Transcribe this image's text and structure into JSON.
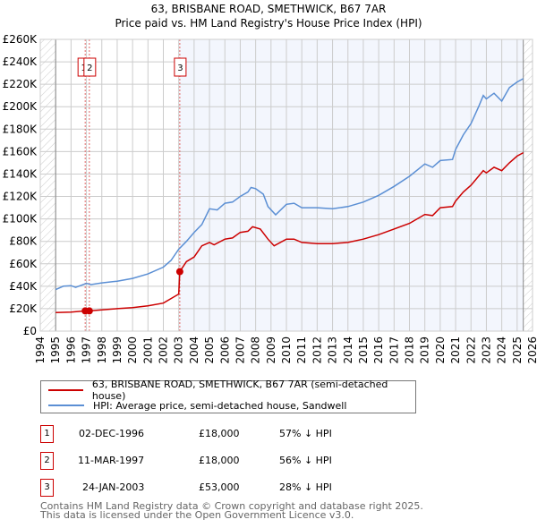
{
  "title": "63, BRISBANE ROAD, SMETHWICK, B67 7AR",
  "subtitle": "Price paid vs. HM Land Registry's House Price Index (HPI)",
  "chart_data": {
    "type": "line",
    "xlim": [
      1994,
      2026
    ],
    "ylim": [
      0,
      260000
    ],
    "x_ticks": [
      "1994",
      "1995",
      "1996",
      "1997",
      "1998",
      "1999",
      "2000",
      "2001",
      "2002",
      "2003",
      "2004",
      "2005",
      "2006",
      "2007",
      "2008",
      "2009",
      "2010",
      "2011",
      "2012",
      "2013",
      "2014",
      "2015",
      "2016",
      "2017",
      "2018",
      "2019",
      "2020",
      "2021",
      "2022",
      "2023",
      "2024",
      "2025",
      "2026"
    ],
    "y_ticks": [
      "£0",
      "£20K",
      "£40K",
      "£60K",
      "£80K",
      "£100K",
      "£120K",
      "£140K",
      "£160K",
      "£180K",
      "£200K",
      "£220K",
      "£240K",
      "£260K"
    ],
    "grid": true,
    "data_range": [
      1995.0,
      2025.4
    ],
    "shaded_from": 2003.07,
    "series": [
      {
        "name": "63, BRISBANE ROAD, SMETHWICK, B67 7AR (semi-detached house)",
        "color": "#cc0000",
        "x": [
          1995,
          1996,
          1996.92,
          1997.19,
          1998,
          1999,
          2000,
          2001,
          2002,
          2002.5,
          2003.0,
          2003.07,
          2003.5,
          2004,
          2004.5,
          2005,
          2005.3,
          2006,
          2006.5,
          2007,
          2007.5,
          2007.8,
          2008.3,
          2008.8,
          2009.2,
          2010,
          2010.5,
          2011,
          2012,
          2013,
          2014,
          2015,
          2016,
          2017,
          2018,
          2019,
          2019.5,
          2020,
          2020.8,
          2021,
          2021.5,
          2022,
          2022.8,
          2023,
          2023.5,
          2024,
          2024.5,
          2025,
          2025.4
        ],
        "y": [
          16500,
          17000,
          18000,
          18000,
          19000,
          20000,
          21000,
          22500,
          25000,
          29000,
          33000,
          53000,
          62000,
          66000,
          76000,
          79000,
          77000,
          82000,
          83000,
          88000,
          89000,
          93000,
          91000,
          82000,
          76000,
          82000,
          82000,
          79000,
          78000,
          78000,
          79000,
          82000,
          86000,
          91000,
          96000,
          104000,
          103000,
          110000,
          111000,
          116000,
          124000,
          130000,
          143000,
          141000,
          146000,
          143000,
          150000,
          156000,
          159000
        ]
      },
      {
        "name": "HPI: Average price, semi-detached house, Sandwell",
        "color": "#5b8fd4",
        "x": [
          1995,
          1995.5,
          1996,
          1996.3,
          1997,
          1997.3,
          1998,
          1999,
          2000,
          2001,
          2002,
          2002.5,
          2003,
          2003.5,
          2004,
          2004.5,
          2005,
          2005.5,
          2006,
          2006.5,
          2007,
          2007.5,
          2007.7,
          2008,
          2008.5,
          2008.8,
          2009.3,
          2010,
          2010.5,
          2011,
          2012,
          2013,
          2014,
          2015,
          2016,
          2017,
          2018,
          2019,
          2019.5,
          2020,
          2020.8,
          2021,
          2021.5,
          2022,
          2022.5,
          2022.8,
          2023,
          2023.5,
          2024,
          2024.5,
          2025,
          2025.4
        ],
        "y": [
          37000,
          40000,
          40500,
          39000,
          42500,
          41500,
          43000,
          44500,
          47000,
          51000,
          57000,
          63000,
          73000,
          80000,
          88000,
          95000,
          109000,
          108000,
          114000,
          115000,
          120000,
          124000,
          128000,
          127000,
          122000,
          111000,
          103700,
          113000,
          114000,
          110000,
          110000,
          109000,
          111000,
          115000,
          121000,
          129000,
          138000,
          149000,
          146000,
          152000,
          153000,
          162000,
          175000,
          185000,
          200000,
          210000,
          207000,
          212000,
          205000,
          217000,
          222000,
          225000
        ]
      }
    ],
    "sales": [
      {
        "label": "1",
        "x": 1996.92,
        "price": 18000
      },
      {
        "label": "2",
        "x": 1997.19,
        "price": 18000
      },
      {
        "label": "3",
        "x": 2003.07,
        "price": 53000
      }
    ]
  },
  "legend": {
    "property": "63, BRISBANE ROAD, SMETHWICK, B67 7AR (semi-detached house)",
    "hpi": "HPI: Average price, semi-detached house, Sandwell"
  },
  "transactions": [
    {
      "num": "1",
      "date": "02-DEC-1996",
      "price": "£18,000",
      "hpi": "57% ↓ HPI"
    },
    {
      "num": "2",
      "date": "11-MAR-1997",
      "price": "£18,000",
      "hpi": "56% ↓ HPI"
    },
    {
      "num": "3",
      "date": "24-JAN-2003",
      "price": "£53,000",
      "hpi": "28% ↓ HPI"
    }
  ],
  "footer": {
    "line1": "Contains HM Land Registry data © Crown copyright and database right 2025.",
    "line2": "This data is licensed under the Open Government Licence v3.0."
  }
}
